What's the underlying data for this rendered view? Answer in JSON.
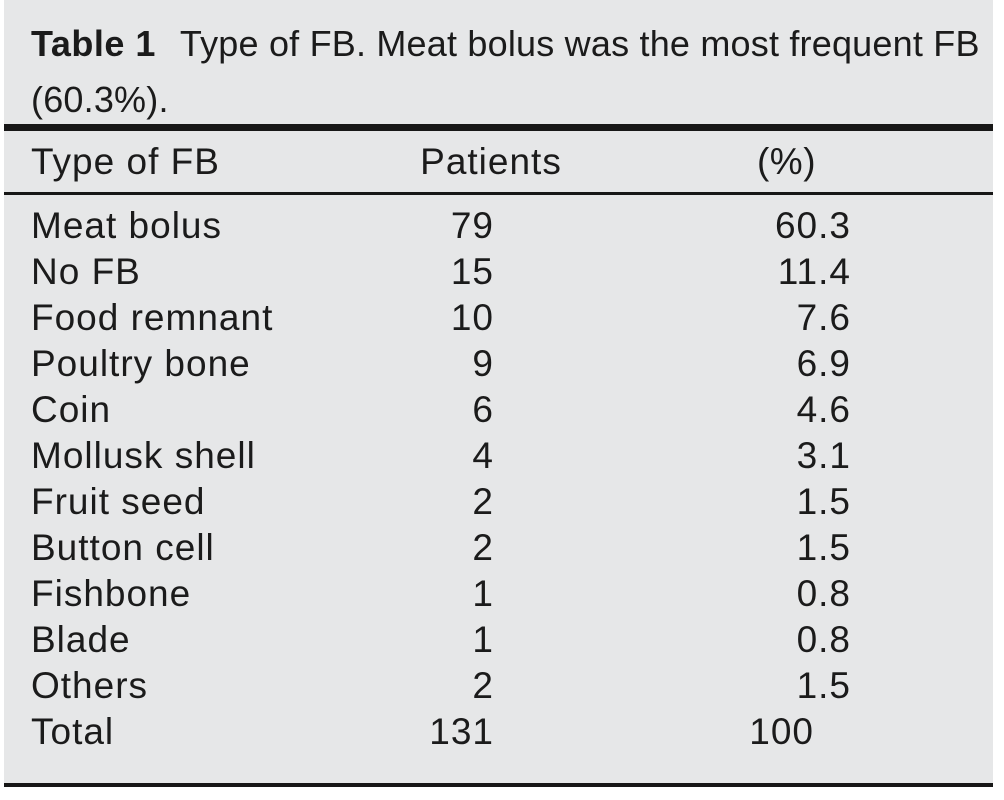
{
  "colors": {
    "page_bg": "#ffffff",
    "panel_bg": "#e6e7e8",
    "rule": "#171717",
    "text": "#1b1b1b"
  },
  "caption": {
    "label": "Table 1",
    "line1": "Type of FB. Meat bolus was the most frequent FB",
    "line2": "(60.3%)."
  },
  "table": {
    "headers": {
      "type": "Type of FB",
      "patients": "Patients",
      "pct": "(%)"
    },
    "rows": [
      {
        "type": "Meat bolus",
        "patients": "79",
        "pct": "60.3"
      },
      {
        "type": "No FB",
        "patients": "15",
        "pct": "11.4"
      },
      {
        "type": "Food remnant",
        "patients": "10",
        "pct": "7.6"
      },
      {
        "type": "Poultry bone",
        "patients": "9",
        "pct": "6.9"
      },
      {
        "type": "Coin",
        "patients": "6",
        "pct": "4.6"
      },
      {
        "type": "Mollusk shell",
        "patients": "4",
        "pct": "3.1"
      },
      {
        "type": "Fruit seed",
        "patients": "2",
        "pct": "1.5"
      },
      {
        "type": "Button cell",
        "patients": "2",
        "pct": "1.5"
      },
      {
        "type": "Fishbone",
        "patients": "1",
        "pct": "0.8"
      },
      {
        "type": "Blade",
        "patients": "1",
        "pct": "0.8"
      },
      {
        "type": "Others",
        "patients": "2",
        "pct": "1.5"
      },
      {
        "type": "Total",
        "patients": "131",
        "pct": "100"
      }
    ]
  },
  "chart_data": {
    "type": "table",
    "title": "Table 1 Type of FB. Meat bolus was the most frequent FB (60.3%).",
    "columns": [
      "Type of FB",
      "Patients",
      "(%)"
    ],
    "rows": [
      [
        "Meat bolus",
        79,
        60.3
      ],
      [
        "No FB",
        15,
        11.4
      ],
      [
        "Food remnant",
        10,
        7.6
      ],
      [
        "Poultry bone",
        9,
        6.9
      ],
      [
        "Coin",
        6,
        4.6
      ],
      [
        "Mollusk shell",
        4,
        3.1
      ],
      [
        "Fruit seed",
        2,
        1.5
      ],
      [
        "Button cell",
        2,
        1.5
      ],
      [
        "Fishbone",
        1,
        0.8
      ],
      [
        "Blade",
        1,
        0.8
      ],
      [
        "Others",
        2,
        1.5
      ],
      [
        "Total",
        131,
        100
      ]
    ]
  }
}
